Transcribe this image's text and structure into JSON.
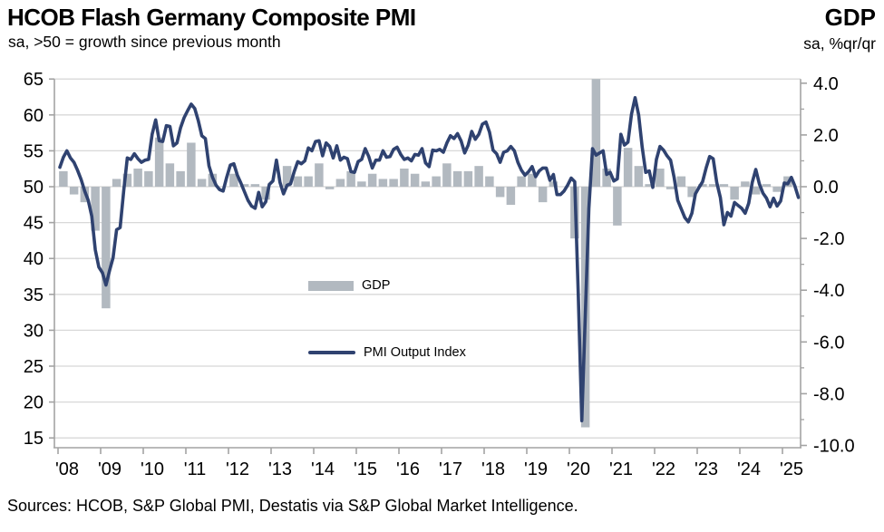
{
  "header": {
    "title": "HCOB Flash Germany Composite PMI",
    "subtitle": "sa, >50 = growth since previous month",
    "right_title": "GDP",
    "right_subtitle": "sa, %qr/qr"
  },
  "legend": {
    "gdp_label": "GDP",
    "pmi_label": "PMI Output Index"
  },
  "footer": {
    "sources": "Sources: HCOB, S&P Global PMI, Destatis via S&P Global Market Intelligence."
  },
  "colors": {
    "pmi_line": "#2f4270",
    "gdp_bar": "#b2b9c0",
    "gridline": "#d8d8d8",
    "axis": "#a3a3a3",
    "text": "#000000",
    "background": "#ffffff"
  },
  "chart_data": {
    "type": "combo",
    "title": "HCOB Flash Germany Composite PMI vs German GDP",
    "x_axis": {
      "tick_labels": [
        "'08",
        "'09",
        "'10",
        "'11",
        "'12",
        "'13",
        "'14",
        "'15",
        "'16",
        "'17",
        "'18",
        "'19",
        "'20",
        "'21",
        "'22",
        "'23",
        "'24",
        "'25"
      ],
      "range_years": [
        2008.0,
        2025.45
      ],
      "grid": false
    },
    "left_axis": {
      "label": "PMI Output Index",
      "tick_labels": [
        "65",
        "60",
        "55",
        "50",
        "45",
        "40",
        "35",
        "30",
        "25",
        "20",
        "15"
      ],
      "ticks": [
        65,
        60,
        55,
        50,
        45,
        40,
        35,
        30,
        25,
        20,
        15
      ],
      "range": [
        13.6,
        65
      ],
      "grid": true
    },
    "right_axis": {
      "label": "GDP, sa, %qr/qr",
      "tick_labels": [
        "4.0",
        "2.0",
        "0.0",
        "-2.0",
        "-4.0",
        "-6.0",
        "-8.0",
        "-10.0"
      ],
      "ticks": [
        4,
        2,
        0,
        -2,
        -4,
        -6,
        -8,
        -10
      ],
      "minor_ticks": [
        3,
        1,
        -1,
        -3,
        -5,
        -7,
        -9
      ],
      "range": [
        -10.1,
        4.2
      ],
      "grid": false
    },
    "legend_position": "center-left inside plot",
    "series": [
      {
        "name": "GDP",
        "type": "bar",
        "axis": "right",
        "frequency": "quarterly",
        "start": "2008Q1",
        "end": "2025Q1",
        "values": [
          0.6,
          -0.3,
          -0.6,
          -1.7,
          -4.7,
          0.3,
          0.5,
          0.7,
          0.6,
          1.9,
          0.9,
          0.6,
          1.7,
          0.3,
          0.5,
          0.0,
          0.5,
          0.1,
          0.1,
          -0.5,
          0.0,
          0.8,
          0.4,
          0.4,
          0.9,
          -0.1,
          0.3,
          0.6,
          0.2,
          0.5,
          0.3,
          0.3,
          0.7,
          0.5,
          0.2,
          0.4,
          0.9,
          0.6,
          0.6,
          0.8,
          0.4,
          -0.4,
          -0.7,
          0.4,
          0.5,
          -0.6,
          0.2,
          0.0,
          -2.0,
          -9.3,
          8.7,
          0.7,
          -1.5,
          1.5,
          0.8,
          0.1,
          0.7,
          -0.1,
          0.4,
          -0.4,
          0.1,
          0.1,
          0.1,
          -0.5,
          0.2,
          -0.3,
          0.1,
          -0.2,
          0.4
        ]
      },
      {
        "name": "PMI Output Index",
        "type": "line",
        "axis": "left",
        "frequency": "monthly",
        "start": "2008-01",
        "end": "2025-05",
        "values": [
          52.7,
          54.1,
          55.0,
          54.0,
          53.4,
          52.3,
          51.0,
          49.4,
          48.1,
          45.9,
          41.2,
          38.8,
          38.0,
          36.3,
          38.3,
          40.1,
          44.0,
          44.3,
          49.5,
          54.0,
          53.8,
          54.6,
          53.9,
          53.4,
          53.7,
          53.8,
          57.3,
          59.3,
          56.4,
          56.3,
          58.5,
          58.4,
          55.7,
          56.1,
          58.2,
          59.6,
          60.6,
          61.5,
          60.9,
          59.2,
          57.1,
          56.7,
          52.9,
          51.3,
          50.2,
          49.6,
          49.4,
          51.3,
          53.0,
          53.2,
          51.6,
          50.5,
          49.3,
          48.1,
          47.3,
          47.0,
          49.2,
          47.2,
          47.9,
          50.3,
          50.8,
          53.7,
          50.6,
          49.0,
          50.2,
          50.4,
          52.1,
          53.5,
          53.2,
          53.6,
          55.4,
          55.0,
          56.3,
          56.4,
          54.3,
          56.1,
          55.6,
          54.0,
          55.7,
          53.7,
          54.1,
          53.9,
          52.1,
          52.0,
          53.5,
          53.8,
          55.3,
          54.2,
          52.6,
          53.7,
          53.7,
          55.0,
          54.1,
          54.2,
          55.2,
          55.5,
          54.5,
          53.8,
          54.0,
          53.6,
          54.5,
          54.4,
          55.3,
          53.3,
          52.8,
          55.1,
          55.0,
          55.2,
          54.8,
          56.1,
          57.1,
          56.7,
          57.4,
          56.4,
          54.7,
          55.8,
          57.7,
          56.6,
          57.3,
          58.7,
          59.0,
          57.6,
          55.1,
          54.6,
          53.4,
          54.8,
          55.0,
          55.6,
          55.0,
          53.4,
          52.3,
          51.6,
          52.1,
          52.8,
          51.4,
          52.2,
          52.6,
          52.6,
          50.9,
          51.7,
          48.9,
          48.9,
          49.4,
          50.2,
          51.2,
          50.7,
          35.0,
          17.4,
          32.3,
          47.0,
          55.3,
          54.4,
          54.7,
          55.0,
          51.7,
          52.0,
          50.8,
          51.1,
          57.3,
          55.8,
          56.2,
          60.1,
          62.4,
          60.0,
          55.5,
          52.0,
          52.2,
          49.9,
          53.8,
          55.6,
          55.1,
          54.3,
          53.7,
          51.3,
          48.1,
          46.9,
          45.7,
          45.1,
          46.3,
          49.0,
          49.9,
          50.7,
          52.6,
          54.2,
          53.9,
          50.6,
          48.5,
          44.7,
          46.4,
          45.9,
          47.8,
          47.4,
          47.0,
          46.3,
          47.7,
          50.6,
          52.4,
          50.4,
          49.1,
          48.4,
          47.2,
          48.4,
          47.3,
          48.0,
          50.5,
          50.4,
          51.3,
          50.1,
          48.5
        ]
      }
    ]
  }
}
